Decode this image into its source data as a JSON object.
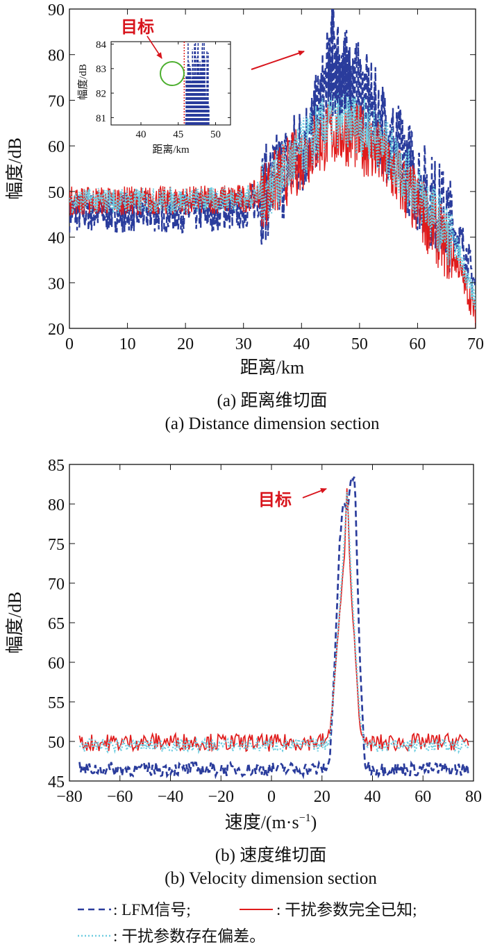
{
  "colors": {
    "lfm": "#2a3c9c",
    "known": "#e01b1b",
    "bias": "#6fcde0",
    "circle": "#4caf2e",
    "annotation": "#d8141c"
  },
  "legend": {
    "lfm": ": LFM信号;",
    "known": ": 干扰参数完全已知;",
    "bias": ": 干扰参数存在偏差。"
  },
  "chart_data": [
    {
      "type": "line",
      "caption_cn": "(a) 距离维切面",
      "caption_en": "(a) Distance dimension section",
      "xlabel": "距离/km",
      "ylabel": "幅度/dB",
      "xlim": [
        0,
        70
      ],
      "ylim": [
        20,
        90
      ],
      "xticks": [
        "0",
        "10",
        "20",
        "30",
        "40",
        "50",
        "60",
        "70"
      ],
      "yticks": [
        "20",
        "30",
        "40",
        "50",
        "60",
        "70",
        "80",
        "90"
      ],
      "annotation": "目标",
      "series": [
        {
          "name": "LFM信号",
          "style": "dashed",
          "x": [
            0,
            10,
            20,
            30,
            34,
            38,
            42,
            44,
            45.5,
            47,
            50,
            55,
            60,
            65,
            68,
            70
          ],
          "y": [
            45.5,
            45.5,
            45.5,
            46,
            50,
            56,
            63,
            72,
            82,
            76,
            72,
            62,
            52,
            44,
            38,
            29
          ]
        },
        {
          "name": "干扰参数完全已知",
          "style": "solid",
          "x": [
            0,
            10,
            20,
            30,
            34,
            38,
            42,
            45.5,
            48,
            52,
            56,
            60,
            64,
            67,
            70
          ],
          "y": [
            48,
            48,
            48,
            48.5,
            50,
            55,
            60,
            63,
            63,
            60,
            54,
            47,
            40,
            34,
            23
          ]
        },
        {
          "name": "干扰参数存在偏差",
          "style": "dotted",
          "x": [
            0,
            10,
            20,
            30,
            34,
            38,
            42,
            45.5,
            48,
            52,
            56,
            60,
            64,
            67,
            70
          ],
          "y": [
            48,
            48,
            48,
            48.5,
            50,
            56,
            62,
            66,
            66,
            63,
            57,
            50,
            43,
            37,
            26
          ]
        }
      ],
      "inset": {
        "xlim": [
          36,
          52
        ],
        "ylim": [
          80.7,
          84.1
        ],
        "xticks": [
          "40",
          "45",
          "50"
        ],
        "yticks": [
          "81",
          "82",
          "83",
          "84"
        ],
        "xlabel": "距离/km",
        "ylabel": "幅度/dB",
        "annotation": "目标",
        "target_x": 45.8
      }
    },
    {
      "type": "line",
      "caption_cn": "(b) 速度维切面",
      "caption_en": "(b) Velocity dimension section",
      "xlabel": "速度/(m·s",
      "xlabel_sup": "−1",
      "xlabel_end": ")",
      "ylabel": "幅度/dB",
      "xlim": [
        -80,
        80
      ],
      "ylim": [
        45,
        85
      ],
      "xticks": [
        "−80",
        "−60",
        "−40",
        "−20",
        "0",
        "20",
        "40",
        "60",
        "80"
      ],
      "yticks": [
        "45",
        "50",
        "55",
        "60",
        "65",
        "70",
        "75",
        "80",
        "85"
      ],
      "annotation": "目标",
      "series": [
        {
          "name": "LFM信号",
          "style": "dashed",
          "x": [
            -76,
            -40,
            0,
            20,
            23,
            25,
            27,
            28.5,
            30,
            31.5,
            33,
            35,
            37,
            40,
            78
          ],
          "y": [
            46.5,
            46.5,
            46.5,
            46.5,
            47,
            60,
            75,
            80.5,
            79,
            83,
            83.5,
            60,
            47,
            46.5,
            46.5
          ]
        },
        {
          "name": "干扰参数完全已知",
          "style": "solid",
          "x": [
            -76,
            -40,
            0,
            20,
            23,
            25,
            27,
            29,
            30,
            31,
            33,
            35,
            37,
            40,
            78
          ],
          "y": [
            49.8,
            50,
            49.8,
            50,
            50.5,
            58,
            66,
            74,
            82.8,
            72,
            62,
            52,
            49.5,
            49.8,
            50
          ]
        },
        {
          "name": "干扰参数存在偏差",
          "style": "dotted",
          "x": [
            -76,
            -40,
            0,
            20,
            23,
            25,
            27,
            29,
            30,
            31,
            33,
            35,
            37,
            40,
            78
          ],
          "y": [
            49.5,
            49.5,
            49.5,
            49.5,
            50,
            58,
            67,
            76,
            82.5,
            74,
            63,
            53,
            49.5,
            49.5,
            49.5
          ]
        }
      ]
    }
  ]
}
